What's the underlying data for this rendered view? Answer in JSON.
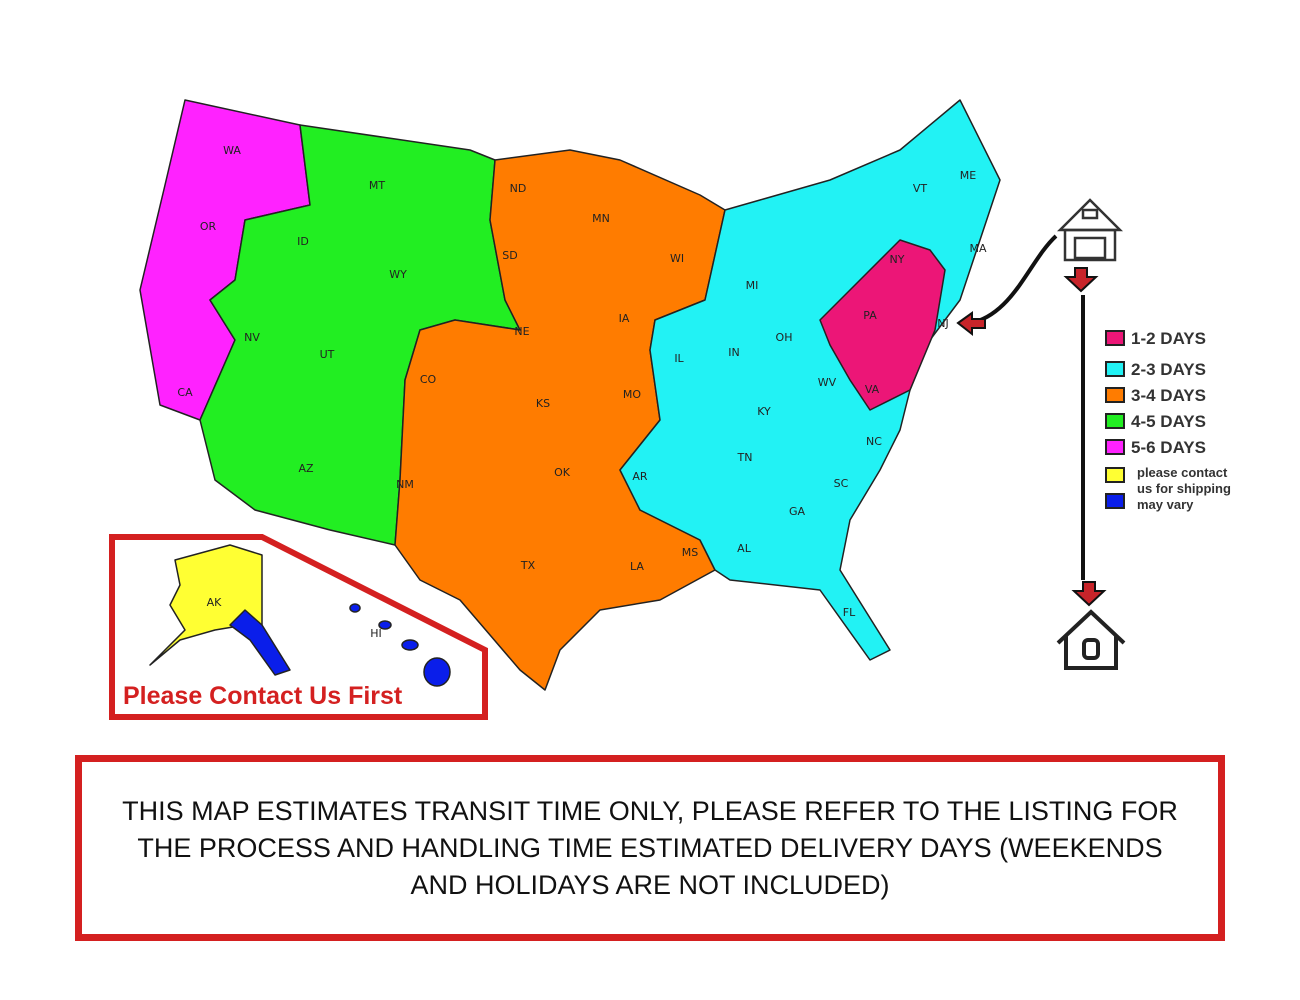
{
  "colors": {
    "days_1_2": "#ec1677",
    "days_2_3": "#22f2f4",
    "days_3_4": "#ff7c00",
    "days_4_5": "#22ee22",
    "days_5_6": "#ff22ff",
    "contact": "#ffff33",
    "varies": "#0a1eea",
    "border_red": "#d42020"
  },
  "states": [
    "WA",
    "OR",
    "CA",
    "NV",
    "ID",
    "MT",
    "WY",
    "UT",
    "AZ",
    "CO",
    "NM",
    "ND",
    "SD",
    "NE",
    "KS",
    "OK",
    "TX",
    "MN",
    "IA",
    "MO",
    "AR",
    "LA",
    "WI",
    "IL",
    "MI",
    "IN",
    "OH",
    "KY",
    "TN",
    "MS",
    "AL",
    "GA",
    "FL",
    "SC",
    "NC",
    "WV",
    "VA",
    "PA",
    "NY",
    "VT",
    "ME",
    "MA",
    "NJ",
    "AK",
    "HI"
  ],
  "legend": [
    {
      "label": "1-2 DAYS",
      "color": "#ec1677"
    },
    {
      "label": "2-3 DAYS",
      "color": "#22f2f4"
    },
    {
      "label": "3-4 DAYS",
      "color": "#ff7c00"
    },
    {
      "label": "4-5 DAYS",
      "color": "#22ee22"
    },
    {
      "label": "5-6 DAYS",
      "color": "#ff22ff"
    }
  ],
  "legend_note": {
    "line1": "please contact",
    "line2": "us for shipping",
    "line3": "may vary",
    "color1": "#ffff33",
    "color2": "#0a1eea"
  },
  "icons": {
    "origin": "warehouse-icon",
    "destination": "house-icon",
    "arrows": "red-down-arrow-icon"
  },
  "inset_label": "Please Contact Us First",
  "notice": "THIS MAP ESTIMATES TRANSIT TIME ONLY, PLEASE REFER TO THE LISTING FOR THE PROCESS AND HANDLING TIME ESTIMATED DELIVERY DAYS (WEEKENDS AND HOLIDAYS ARE NOT INCLUDED)"
}
